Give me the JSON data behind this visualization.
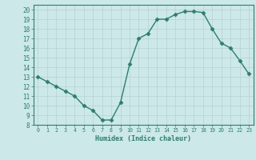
{
  "x": [
    0,
    1,
    2,
    3,
    4,
    5,
    6,
    7,
    8,
    9,
    10,
    11,
    12,
    13,
    14,
    15,
    16,
    17,
    18,
    19,
    20,
    21,
    22,
    23
  ],
  "y": [
    13,
    12.5,
    12,
    11.5,
    11,
    10,
    9.5,
    8.5,
    8.5,
    10.3,
    14.3,
    17,
    17.5,
    19,
    19,
    19.5,
    19.8,
    19.8,
    19.7,
    18,
    16.5,
    16,
    14.7,
    13.3
  ],
  "line_color": "#2e7d6e",
  "marker": "D",
  "marker_size": 2.5,
  "bg_color": "#cce8e8",
  "grid_color": "#b8d4d4",
  "xlabel": "Humidex (Indice chaleur)",
  "xlim": [
    -0.5,
    23.5
  ],
  "ylim": [
    8,
    20.5
  ],
  "yticks": [
    8,
    9,
    10,
    11,
    12,
    13,
    14,
    15,
    16,
    17,
    18,
    19,
    20
  ],
  "xticks": [
    0,
    1,
    2,
    3,
    4,
    5,
    6,
    7,
    8,
    9,
    10,
    11,
    12,
    13,
    14,
    15,
    16,
    17,
    18,
    19,
    20,
    21,
    22,
    23
  ],
  "axis_color": "#2e7d6e",
  "tick_color": "#2e7d6e",
  "label_color": "#2e7d6e",
  "xlabel_fontsize": 6.0,
  "xtick_fontsize": 4.8,
  "ytick_fontsize": 5.5
}
